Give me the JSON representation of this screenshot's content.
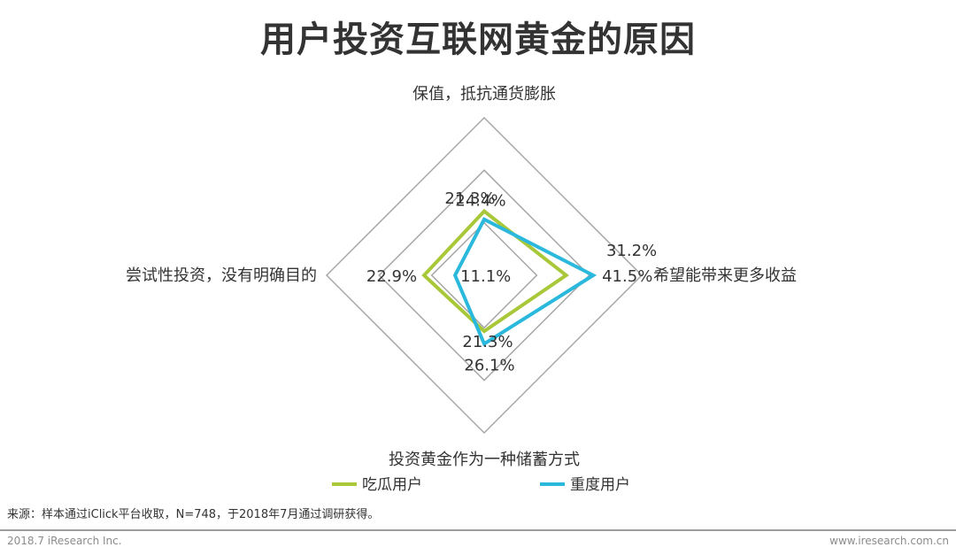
{
  "title": "用户投资互联网黄金的原因",
  "chart_data": {
    "type": "radar",
    "axes": [
      "保值，抵抗通货膨胀",
      "希望能带来更多收益",
      "投资黄金作为一种储蓄方式",
      "尝试性投资，没有明确目的"
    ],
    "series": [
      {
        "name": "吃瓜用户",
        "color": "#a8c83a",
        "values": [
          24.4,
          31.2,
          21.3,
          22.9
        ],
        "labels": [
          "24.4%",
          "31.2%",
          "21.3%",
          "22.9%"
        ]
      },
      {
        "name": "重度用户",
        "color": "#2ab8dc",
        "values": [
          21.3,
          41.5,
          26.1,
          11.1
        ],
        "labels": [
          "21.3%",
          "41.5%",
          "26.1%",
          "11.1%"
        ]
      }
    ],
    "range": [
      0,
      60
    ],
    "gridlines": [
      20,
      40,
      60
    ]
  },
  "source": "来源：样本通过iClick平台收取，N=748，于2018年7月通过调研获得。",
  "footer": {
    "left": "2018.7 iResearch Inc.",
    "right": "www.iresearch.com.cn"
  }
}
